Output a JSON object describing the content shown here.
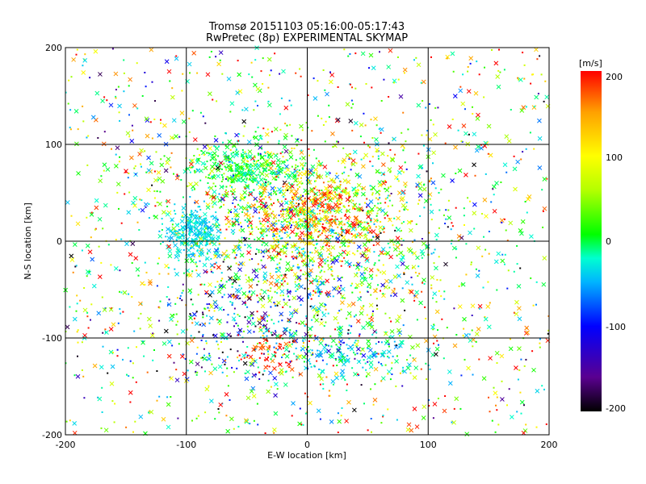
{
  "chart_data": {
    "type": "scatter",
    "title": "Tromsø 20151103 05:16:00-05:17:43",
    "subtitle": "RwPretec (8p) EXPERIMENTAL SKYMAP",
    "xlabel": "E-W location [km]",
    "ylabel": "N-S location [km]",
    "xlim": [
      -200,
      200
    ],
    "ylim": [
      -200,
      200
    ],
    "x_ticks": [
      "-200",
      "-100",
      "0",
      "100",
      "200"
    ],
    "y_ticks": [
      "200",
      "100",
      "0",
      "-100",
      "-200"
    ],
    "grid": true,
    "marker_types": [
      "x",
      "dot"
    ],
    "colorbar": {
      "label": "[m/s]",
      "range": [
        -200,
        200
      ],
      "ticks": [
        "200",
        "100",
        "0",
        "-100",
        "-200"
      ],
      "colors": [
        "#000000",
        "#5a0090",
        "#0000ff",
        "#00b4ff",
        "#00ffd0",
        "#00ff00",
        "#b4ff00",
        "#ffff00",
        "#ffa000",
        "#ff0000"
      ]
    },
    "clusters": [
      {
        "x": 0,
        "y": 10,
        "spread_x": 60,
        "spread_y": 55,
        "count": 1300,
        "value": 40,
        "value_spread": 80
      },
      {
        "x": -55,
        "y": 75,
        "spread_x": 22,
        "spread_y": 14,
        "count": 320,
        "value": 10,
        "value_spread": 25
      },
      {
        "x": -95,
        "y": 8,
        "spread_x": 11,
        "spread_y": 13,
        "count": 260,
        "value": -45,
        "value_spread": 15
      },
      {
        "x": 10,
        "y": 30,
        "spread_x": 28,
        "spread_y": 22,
        "count": 400,
        "value": 150,
        "value_spread": 45
      },
      {
        "x": -45,
        "y": -80,
        "spread_x": 35,
        "spread_y": 35,
        "count": 280,
        "value": -90,
        "value_spread": 80
      },
      {
        "x": -30,
        "y": -115,
        "spread_x": 10,
        "spread_y": 10,
        "count": 60,
        "value": 190,
        "value_spread": 15
      },
      {
        "x": 35,
        "y": -115,
        "spread_x": 30,
        "spread_y": 15,
        "count": 170,
        "value": -40,
        "value_spread": 50
      },
      {
        "x": 0,
        "y": 0,
        "spread_x": 120,
        "spread_y": 115,
        "count": 1300,
        "value": 50,
        "value_spread": 120
      }
    ]
  }
}
